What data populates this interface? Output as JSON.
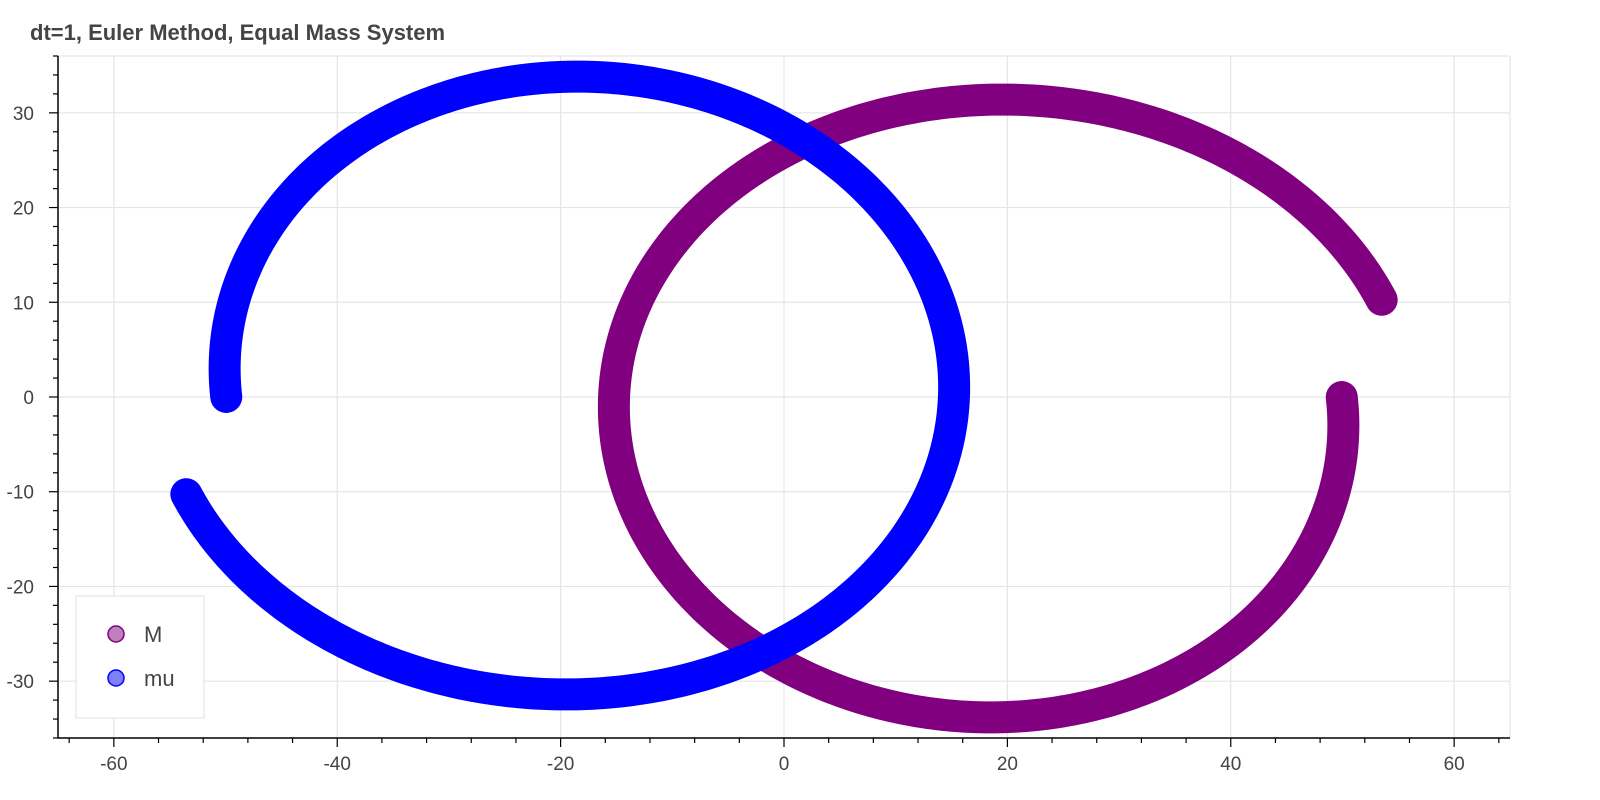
{
  "chart_data": {
    "type": "scatter",
    "title": "dt=1, Euler Method, Equal Mass System",
    "xlabel": "",
    "ylabel": "",
    "xlim": [
      -65,
      65
    ],
    "ylim": [
      -36,
      36
    ],
    "xticks": [
      -60,
      -40,
      -20,
      0,
      20,
      40,
      60
    ],
    "yticks": [
      -30,
      -20,
      -10,
      0,
      10,
      20,
      30
    ],
    "xtick_labels": [
      "-60",
      "-40",
      "-20",
      "0",
      "20",
      "40",
      "60"
    ],
    "ytick_labels": [
      "-30",
      "-20",
      "-10",
      "0",
      "10",
      "20",
      "30"
    ],
    "grid": true,
    "legend_position": "bottom-left",
    "series": [
      {
        "name": "M",
        "color": "#800080",
        "legend_fill": "#c080c0",
        "legend_stroke": "#800080",
        "center": [
          19,
          -2
        ],
        "start": [
          50,
          0
        ],
        "end": [
          56.5,
          12.5
        ],
        "orbit_radius_x": [
          31,
          37
        ],
        "orbit_radius_y": [
          31,
          34
        ]
      },
      {
        "name": "mu",
        "color": "#0000ff",
        "legend_fill": "#8080ff",
        "legend_stroke": "#0000ff",
        "center": [
          -19,
          2
        ],
        "start": [
          -50,
          0
        ],
        "end": [
          -56.5,
          -12.5
        ],
        "orbit_radius_x": [
          31,
          37
        ],
        "orbit_radius_y": [
          31,
          34
        ]
      }
    ]
  }
}
